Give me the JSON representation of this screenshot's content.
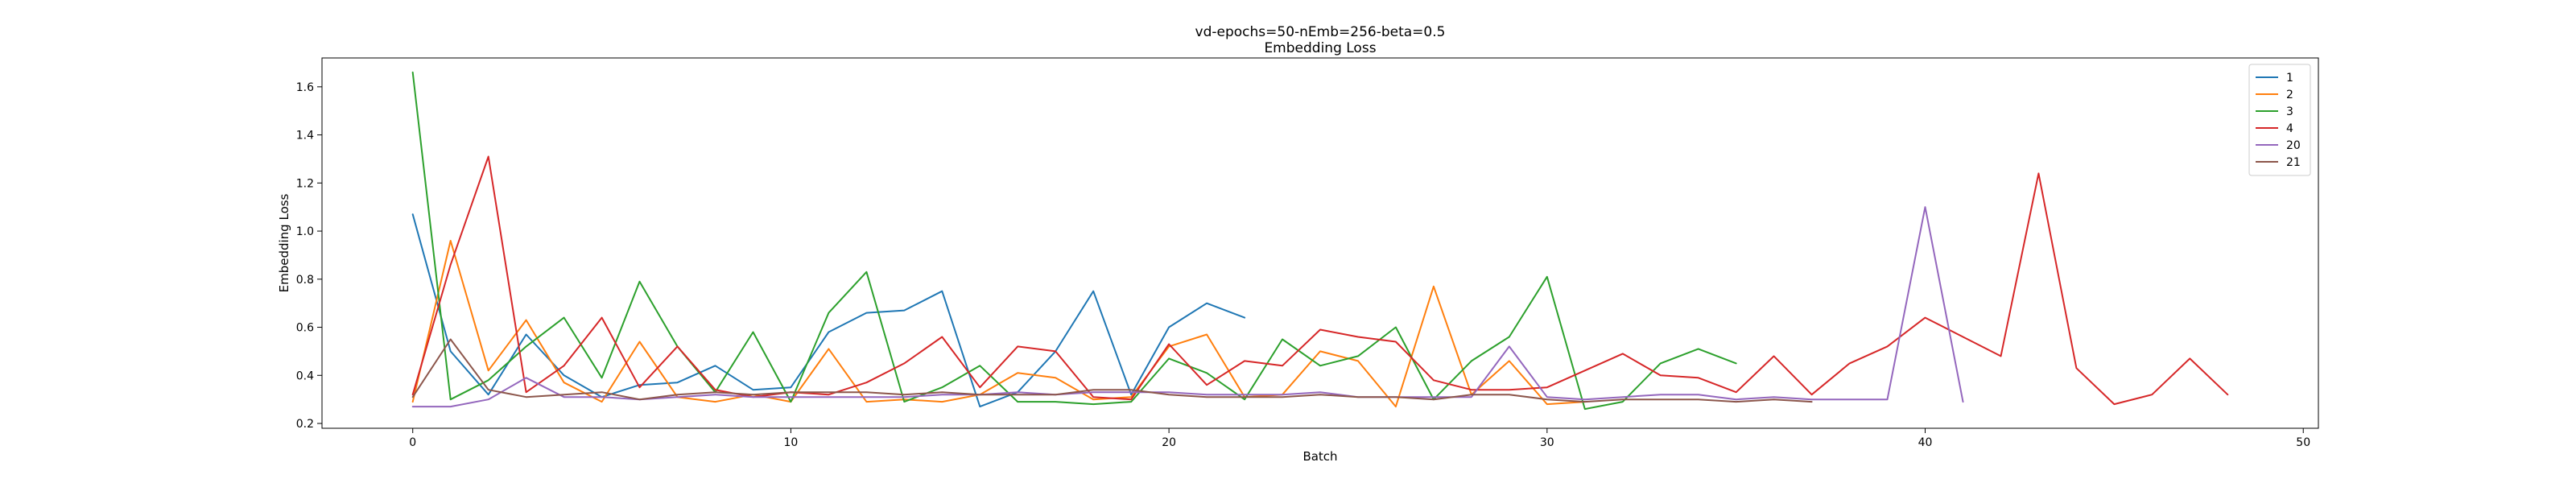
{
  "chart_data": {
    "type": "line",
    "title": "vd-epochs=50-nEmb=256-beta=0.5",
    "subtitle": "Embedding Loss",
    "xlabel": "Batch",
    "ylabel": "Embedding Loss",
    "xlim": [
      -2.4,
      50.4
    ],
    "ylim": [
      0.18,
      1.72
    ],
    "xticks": [
      0,
      10,
      20,
      30,
      40,
      50
    ],
    "yticks": [
      0.2,
      0.4,
      0.6,
      0.8,
      1.0,
      1.2,
      1.4,
      1.6
    ],
    "xtick_labels": [
      "0",
      "10",
      "20",
      "30",
      "40",
      "50"
    ],
    "ytick_labels": [
      "0.2",
      "0.4",
      "0.6",
      "0.8",
      "1.0",
      "1.2",
      "1.4",
      "1.6"
    ],
    "grid": false,
    "legend_position": "top-right",
    "series": [
      {
        "name": "1",
        "color": "#1f77b4",
        "values": [
          1.07,
          0.5,
          0.32,
          0.57,
          0.4,
          0.31,
          0.36,
          0.37,
          0.44,
          0.34,
          0.35,
          0.58,
          0.66,
          0.67,
          0.75,
          0.27,
          0.33,
          0.5,
          0.75,
          0.32,
          0.6,
          0.7,
          0.64
        ]
      },
      {
        "name": "2",
        "color": "#ff7f0e",
        "values": [
          0.29,
          0.96,
          0.42,
          0.63,
          0.37,
          0.29,
          0.54,
          0.31,
          0.29,
          0.32,
          0.29,
          0.51,
          0.29,
          0.3,
          0.29,
          0.32,
          0.41,
          0.39,
          0.3,
          0.31,
          0.52,
          0.57,
          0.31,
          0.32,
          0.5,
          0.46,
          0.27,
          0.77,
          0.32,
          0.46,
          0.28,
          0.29
        ]
      },
      {
        "name": "3",
        "color": "#2ca02c",
        "values": [
          1.66,
          0.3,
          0.38,
          0.52,
          0.64,
          0.39,
          0.79,
          0.52,
          0.33,
          0.58,
          0.29,
          0.66,
          0.83,
          0.29,
          0.35,
          0.44,
          0.29,
          0.29,
          0.28,
          0.29,
          0.47,
          0.41,
          0.3,
          0.55,
          0.44,
          0.48,
          0.6,
          0.3,
          0.46,
          0.56,
          0.81,
          0.26,
          0.29,
          0.45,
          0.51,
          0.45
        ]
      },
      {
        "name": "4",
        "color": "#d62728",
        "values": [
          0.32,
          0.86,
          1.31,
          0.33,
          0.44,
          0.64,
          0.35,
          0.52,
          0.34,
          0.31,
          0.33,
          0.32,
          0.37,
          0.45,
          0.56,
          0.35,
          0.52,
          0.5,
          0.31,
          0.3,
          0.53,
          0.36,
          0.46,
          0.44,
          0.59,
          0.56,
          0.54,
          0.38,
          0.34,
          0.34,
          0.35,
          0.42,
          0.49,
          0.4,
          0.39,
          0.33,
          0.48,
          0.32,
          0.45,
          0.52,
          0.64,
          0.56,
          0.48,
          1.24,
          0.43,
          0.28,
          0.32,
          0.47,
          0.32
        ]
      },
      {
        "name": "20",
        "color": "#9467bd",
        "values": [
          0.27,
          0.27,
          0.3,
          0.39,
          0.31,
          0.31,
          0.3,
          0.31,
          0.32,
          0.31,
          0.31,
          0.31,
          0.31,
          0.31,
          0.32,
          0.32,
          0.33,
          0.32,
          0.33,
          0.33,
          0.33,
          0.32,
          0.32,
          0.32,
          0.33,
          0.31,
          0.31,
          0.31,
          0.31,
          0.52,
          0.31,
          0.3,
          0.31,
          0.32,
          0.32,
          0.3,
          0.31,
          0.3,
          0.3,
          0.3,
          1.1,
          0.29
        ]
      },
      {
        "name": "21",
        "color": "#8c564b",
        "values": [
          0.31,
          0.55,
          0.34,
          0.31,
          0.32,
          0.33,
          0.3,
          0.32,
          0.33,
          0.32,
          0.33,
          0.33,
          0.33,
          0.32,
          0.33,
          0.32,
          0.32,
          0.32,
          0.34,
          0.34,
          0.32,
          0.31,
          0.31,
          0.31,
          0.32,
          0.31,
          0.31,
          0.3,
          0.32,
          0.32,
          0.3,
          0.29,
          0.3,
          0.3,
          0.3,
          0.29,
          0.3,
          0.29
        ]
      }
    ]
  }
}
